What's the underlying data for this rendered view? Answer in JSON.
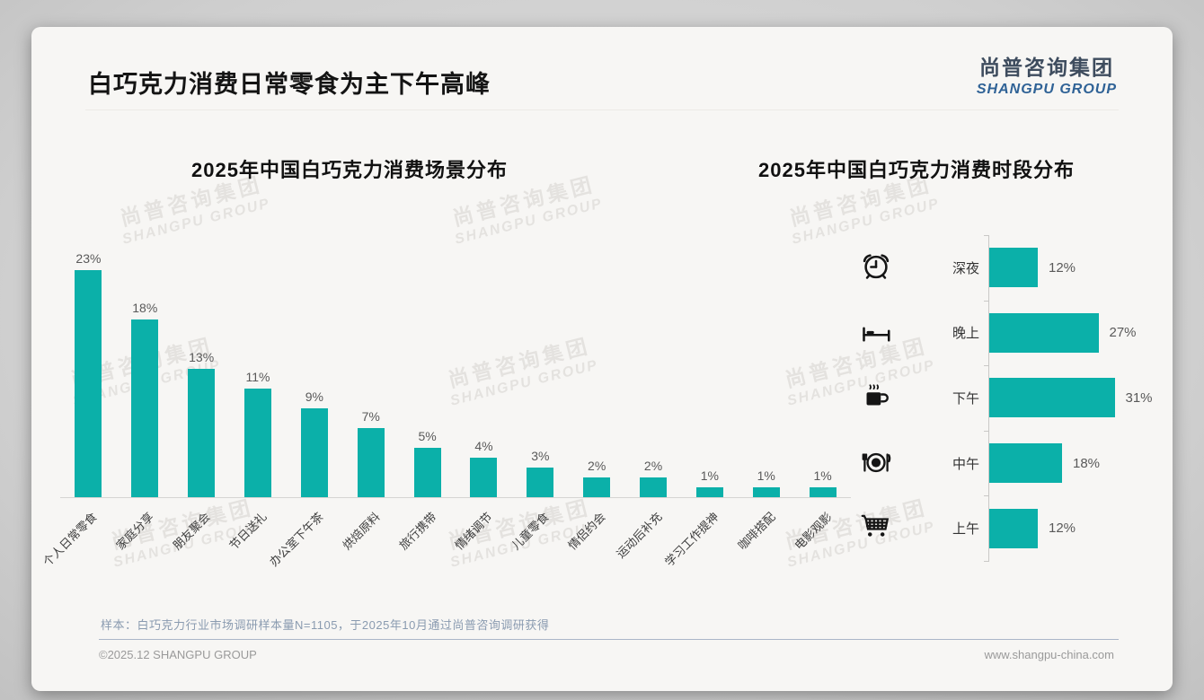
{
  "page": {
    "title": "白巧克力消费日常零食为主下午高峰"
  },
  "logo": {
    "cn": "尚普咨询集团",
    "en": "SHANGPU GROUP"
  },
  "watermark": {
    "line1": "尚普咨询集团",
    "line2": "SHANGPU GROUP"
  },
  "colors": {
    "bar_teal": "#0BB0A9",
    "logo_blue": "#2F6296",
    "note_blue_gray": "#8A9BB0"
  },
  "chart_data": [
    {
      "type": "bar",
      "orientation": "vertical",
      "title": "2025年中国白巧克力消费场景分布",
      "unit": "%",
      "categories": [
        "个人日常零食",
        "家庭分享",
        "朋友聚会",
        "节日送礼",
        "办公室下午茶",
        "烘焙原料",
        "旅行携带",
        "情绪调节",
        "儿童零食",
        "情侣约会",
        "运动后补充",
        "学习工作提神",
        "咖啡搭配",
        "电影观影"
      ],
      "values": [
        23,
        18,
        13,
        11,
        9,
        7,
        5,
        4,
        3,
        2,
        2,
        1,
        1,
        1
      ],
      "data_labels": true,
      "ylim": [
        0,
        25
      ],
      "grid": false,
      "bar_color": "#0BB0A9"
    },
    {
      "type": "bar",
      "orientation": "horizontal",
      "title": "2025年中国白巧克力消费时段分布",
      "unit": "%",
      "categories": [
        "深夜",
        "晚上",
        "下午",
        "中午",
        "上午"
      ],
      "values": [
        12,
        27,
        31,
        18,
        12
      ],
      "icons": [
        "alarm-clock-icon",
        "bed-icon",
        "coffee-icon",
        "dining-icon",
        "shopping-cart-icon"
      ],
      "data_labels": true,
      "grid": false,
      "bar_color": "#0BB0A9"
    }
  ],
  "footer": {
    "note": "样本：白巧克力行业市场调研样本量N=1105，于2025年10月通过尚普咨询调研获得",
    "copyright": "©2025.12 SHANGPU GROUP",
    "website": "www.shangpu-china.com"
  }
}
